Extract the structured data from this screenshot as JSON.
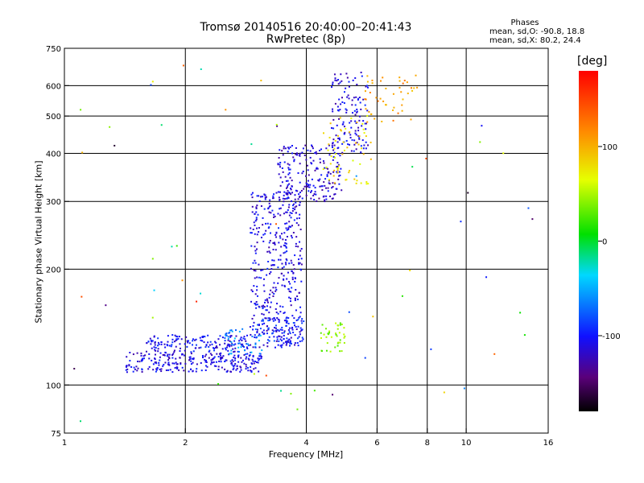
{
  "title": "Tromsø 20140516 20:40:00–20:41:43",
  "subtitle": "RwPretec (8p)",
  "phases": {
    "heading": "Phases",
    "line_o": "mean, sd,O: -90.8, 18.8",
    "line_x": "mean, sd,X: 80.2, 24.4"
  },
  "chart_data": {
    "type": "scatter",
    "xlabel": "Frequency [MHz]",
    "ylabel": "Stationary phase Virtual Height [km]",
    "xscale": "log",
    "yscale": "log",
    "xlim": [
      1,
      16
    ],
    "ylim": [
      75,
      750
    ],
    "x_ticks": [
      1,
      2,
      4,
      6,
      8,
      10,
      16
    ],
    "y_ticks": [
      75,
      100,
      200,
      300,
      400,
      500,
      600,
      750
    ],
    "grid_x": [
      2,
      4,
      6,
      8,
      10
    ],
    "grid_y": [
      100,
      200,
      300,
      400,
      500,
      600
    ],
    "colorbar": {
      "label": "[deg]",
      "range": [
        -180,
        180
      ],
      "ticks": [
        100,
        0,
        -100
      ]
    },
    "clusters": [
      {
        "description": "E-layer O-mode trace",
        "x": [
          1.42,
          3.1
        ],
        "y": [
          108,
          122
        ],
        "phase": -110,
        "count": 260
      },
      {
        "description": "E-layer upper band",
        "x": [
          1.6,
          2.9
        ],
        "y": [
          122,
          135
        ],
        "phase": -105,
        "count": 150
      },
      {
        "description": "E-layer cyan patch",
        "x": [
          2.5,
          3.1
        ],
        "y": [
          120,
          140
        ],
        "phase": -60,
        "count": 45
      },
      {
        "description": "F1 spread echoes",
        "x": [
          2.9,
          3.9
        ],
        "y": [
          125,
          320
        ],
        "phase": -110,
        "count": 420
      },
      {
        "description": "F1 band near 140 km",
        "x": [
          3.0,
          3.95
        ],
        "y": [
          128,
          150
        ],
        "phase": -95,
        "count": 90
      },
      {
        "description": "F2 O-mode trace",
        "x": [
          3.4,
          4.9
        ],
        "y": [
          300,
          420
        ],
        "phase": -115,
        "count": 200
      },
      {
        "description": "F2 upper O-mode",
        "x": [
          4.6,
          5.7
        ],
        "y": [
          400,
          650
        ],
        "phase": -110,
        "count": 130
      },
      {
        "description": "X-mode green patch F1",
        "x": [
          4.35,
          5.0
        ],
        "y": [
          122,
          145
        ],
        "phase": 40,
        "count": 40
      },
      {
        "description": "X-mode yellow F2",
        "x": [
          4.4,
          5.8
        ],
        "y": [
          330,
          520
        ],
        "phase": 80,
        "count": 60
      },
      {
        "description": "X-mode upper traces",
        "x": [
          5.6,
          7.6
        ],
        "y": [
          480,
          640
        ],
        "phase": 110,
        "count": 45
      },
      {
        "description": "Isolated noise",
        "x": [
          1,
          16
        ],
        "y": [
          80,
          700
        ],
        "phase": 0,
        "count": 60
      }
    ]
  }
}
